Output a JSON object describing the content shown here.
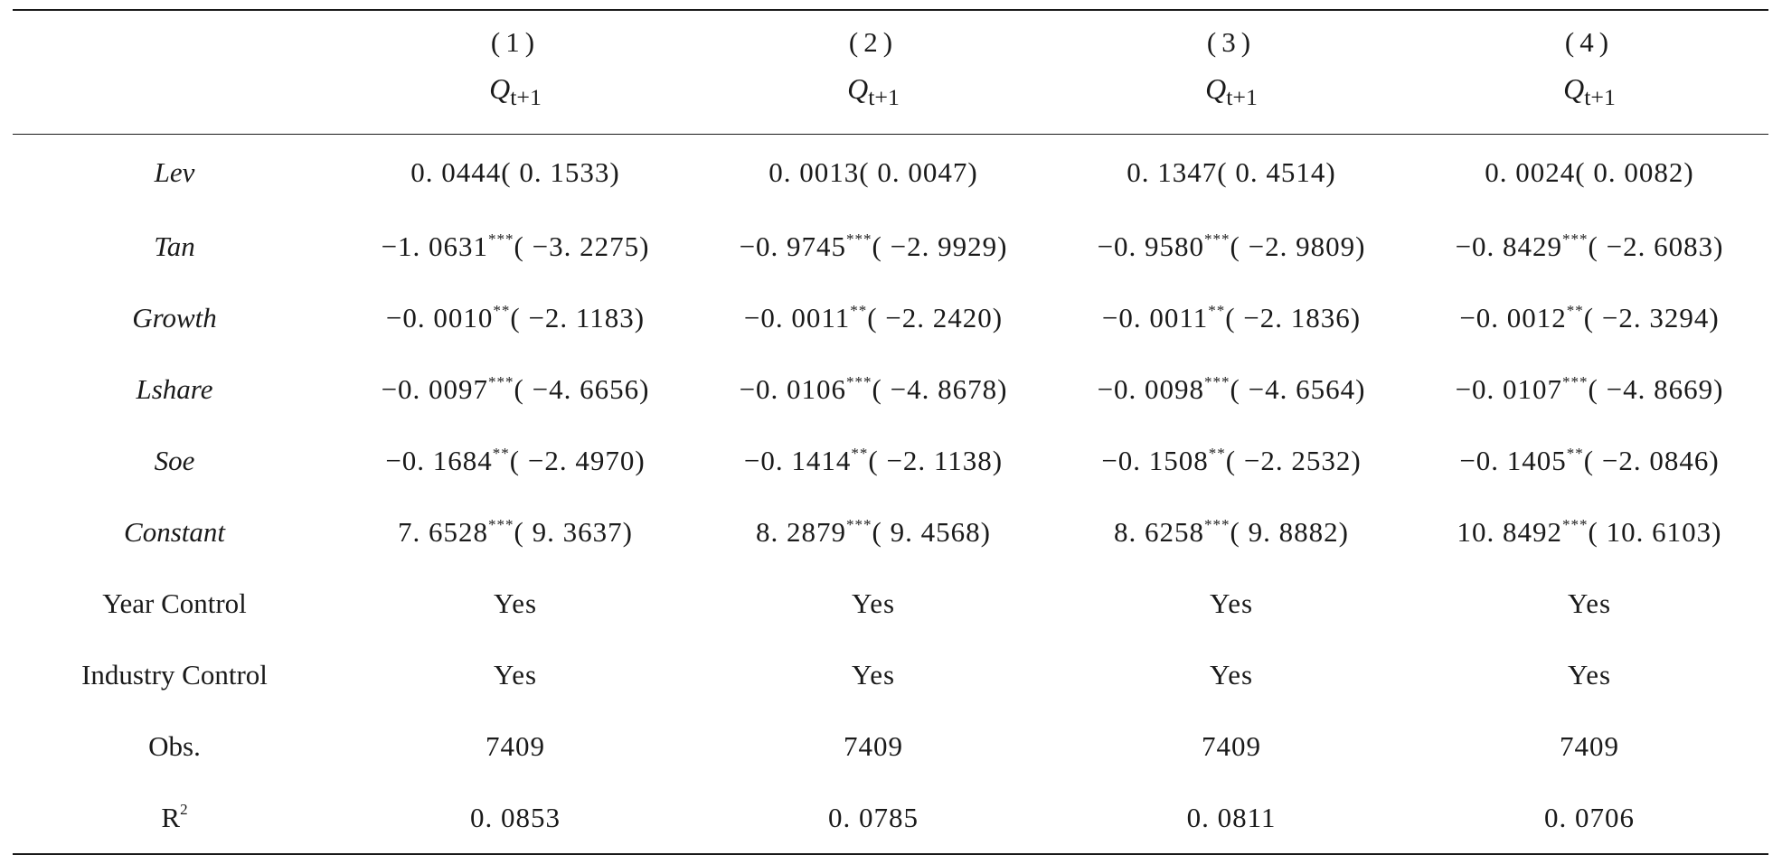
{
  "header": {
    "columns": [
      {
        "num": "(1)",
        "var": "Q",
        "sub": "t+1"
      },
      {
        "num": "(2)",
        "var": "Q",
        "sub": "t+1"
      },
      {
        "num": "(3)",
        "var": "Q",
        "sub": "t+1"
      },
      {
        "num": "(4)",
        "var": "Q",
        "sub": "t+1"
      }
    ]
  },
  "rows": [
    {
      "label": "Lev",
      "cells": [
        {
          "coef": "0. 0444",
          "stars": "",
          "t": "( 0. 1533)"
        },
        {
          "coef": "0. 0013",
          "stars": "",
          "t": "( 0. 0047)"
        },
        {
          "coef": "0. 1347",
          "stars": "",
          "t": "( 0. 4514)"
        },
        {
          "coef": "0. 0024",
          "stars": "",
          "t": "( 0. 0082)"
        }
      ]
    },
    {
      "label": "Tan",
      "cells": [
        {
          "coef": "−1. 0631",
          "stars": "***",
          "t": "( −3. 2275)"
        },
        {
          "coef": "−0. 9745",
          "stars": "***",
          "t": "( −2. 9929)"
        },
        {
          "coef": "−0. 9580",
          "stars": "***",
          "t": "( −2. 9809)"
        },
        {
          "coef": "−0. 8429",
          "stars": "***",
          "t": "( −2. 6083)"
        }
      ]
    },
    {
      "label": "Growth",
      "cells": [
        {
          "coef": "−0. 0010",
          "stars": "**",
          "t": "( −2. 1183)"
        },
        {
          "coef": "−0. 0011",
          "stars": "**",
          "t": "( −2. 2420)"
        },
        {
          "coef": "−0. 0011",
          "stars": "**",
          "t": "( −2. 1836)"
        },
        {
          "coef": "−0. 0012",
          "stars": "**",
          "t": "( −2. 3294)"
        }
      ]
    },
    {
      "label": "Lshare",
      "cells": [
        {
          "coef": "−0. 0097",
          "stars": "***",
          "t": "( −4. 6656)"
        },
        {
          "coef": "−0. 0106",
          "stars": "***",
          "t": "( −4. 8678)"
        },
        {
          "coef": "−0. 0098",
          "stars": "***",
          "t": "( −4. 6564)"
        },
        {
          "coef": "−0. 0107",
          "stars": "***",
          "t": "( −4. 8669)"
        }
      ]
    },
    {
      "label": "Soe",
      "cells": [
        {
          "coef": "−0. 1684",
          "stars": "**",
          "t": "( −2. 4970)"
        },
        {
          "coef": "−0. 1414",
          "stars": "**",
          "t": "( −2. 1138)"
        },
        {
          "coef": "−0. 1508",
          "stars": "**",
          "t": "( −2. 2532)"
        },
        {
          "coef": "−0. 1405",
          "stars": "**",
          "t": "( −2. 0846)"
        }
      ]
    },
    {
      "label": "Constant",
      "cells": [
        {
          "coef": "7. 6528",
          "stars": "***",
          "t": "( 9. 3637)"
        },
        {
          "coef": "8. 2879",
          "stars": "***",
          "t": "( 9. 4568)"
        },
        {
          "coef": "8. 6258",
          "stars": "***",
          "t": "( 9. 8882)"
        },
        {
          "coef": "10. 8492",
          "stars": "***",
          "t": "( 10. 6103)"
        }
      ]
    }
  ],
  "footer_rows": [
    {
      "label": "Year Control",
      "values": [
        "Yes",
        "Yes",
        "Yes",
        "Yes"
      ]
    },
    {
      "label": "Industry Control",
      "values": [
        "Yes",
        "Yes",
        "Yes",
        "Yes"
      ]
    },
    {
      "label": "Obs.",
      "values": [
        "7409",
        "7409",
        "7409",
        "7409"
      ]
    }
  ],
  "r2_row": {
    "label": "R",
    "label_sup": "2",
    "values": [
      "0. 0853",
      "0. 0785",
      "0. 0811",
      "0. 0706"
    ]
  }
}
